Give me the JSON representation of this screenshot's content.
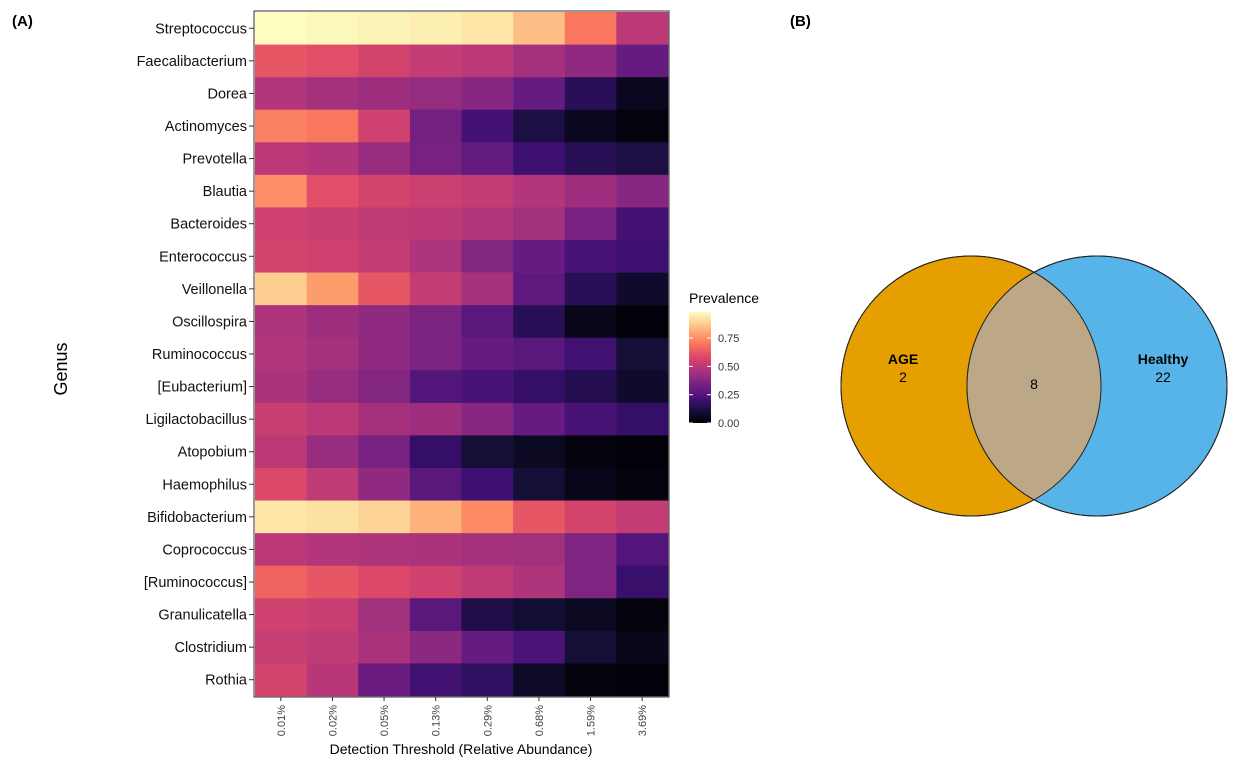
{
  "panel_a_label": "(A)",
  "panel_b_label": "(B)",
  "chart_data": [
    {
      "type": "heatmap",
      "title": "",
      "xlabel": "Detection Threshold (Relative Abundance)",
      "ylabel": "Genus",
      "x_categories": [
        "0.01%",
        "0.02%",
        "0.05%",
        "0.13%",
        "0.29%",
        "0.68%",
        "1.59%",
        "3.69%"
      ],
      "y_categories": [
        "Streptococcus",
        "Faecalibacterium",
        "Dorea",
        "Actinomyces",
        "Prevotella",
        "Blautia",
        "Bacteroides",
        "Enterococcus",
        "Veillonella",
        "Oscillospira",
        "Ruminococcus",
        "[Eubacterium]",
        "Ligilactobacillus",
        "Atopobium",
        "Haemophilus",
        "Bifidobacterium",
        "Coprococcus",
        "[Ruminococcus]",
        "Granulicatella",
        "Clostridium",
        "Rothia"
      ],
      "values": [
        [
          0.98,
          0.97,
          0.96,
          0.95,
          0.93,
          0.85,
          0.7,
          0.5
        ],
        [
          0.62,
          0.6,
          0.56,
          0.52,
          0.5,
          0.45,
          0.4,
          0.3
        ],
        [
          0.48,
          0.45,
          0.43,
          0.41,
          0.38,
          0.3,
          0.15,
          0.05
        ],
        [
          0.72,
          0.7,
          0.55,
          0.33,
          0.22,
          0.12,
          0.05,
          0.02
        ],
        [
          0.5,
          0.48,
          0.42,
          0.34,
          0.29,
          0.2,
          0.15,
          0.12
        ],
        [
          0.75,
          0.6,
          0.56,
          0.54,
          0.52,
          0.48,
          0.43,
          0.38
        ],
        [
          0.55,
          0.53,
          0.51,
          0.5,
          0.48,
          0.44,
          0.34,
          0.22
        ],
        [
          0.56,
          0.55,
          0.52,
          0.47,
          0.37,
          0.3,
          0.23,
          0.2
        ],
        [
          0.88,
          0.78,
          0.62,
          0.52,
          0.45,
          0.28,
          0.15,
          0.08
        ],
        [
          0.47,
          0.43,
          0.4,
          0.35,
          0.27,
          0.15,
          0.04,
          0.01
        ],
        [
          0.48,
          0.45,
          0.4,
          0.35,
          0.3,
          0.27,
          0.21,
          0.1
        ],
        [
          0.46,
          0.42,
          0.37,
          0.25,
          0.23,
          0.18,
          0.14,
          0.08
        ],
        [
          0.53,
          0.5,
          0.45,
          0.43,
          0.38,
          0.3,
          0.23,
          0.18
        ],
        [
          0.5,
          0.42,
          0.34,
          0.18,
          0.1,
          0.06,
          0.02,
          0.01
        ],
        [
          0.58,
          0.51,
          0.4,
          0.27,
          0.2,
          0.1,
          0.04,
          0.02
        ],
        [
          0.93,
          0.92,
          0.89,
          0.82,
          0.74,
          0.62,
          0.56,
          0.52
        ],
        [
          0.5,
          0.48,
          0.47,
          0.46,
          0.45,
          0.44,
          0.36,
          0.25
        ],
        [
          0.65,
          0.62,
          0.58,
          0.55,
          0.51,
          0.47,
          0.36,
          0.19
        ],
        [
          0.55,
          0.53,
          0.44,
          0.27,
          0.13,
          0.09,
          0.06,
          0.02
        ],
        [
          0.53,
          0.51,
          0.46,
          0.39,
          0.3,
          0.24,
          0.1,
          0.04
        ],
        [
          0.56,
          0.49,
          0.31,
          0.21,
          0.17,
          0.07,
          0.02,
          0.01
        ]
      ],
      "colorscale": "magma",
      "legend": {
        "title": "Prevalence",
        "ticks": [
          "0.00",
          "0.25",
          "0.50",
          "0.75"
        ],
        "tick_values": [
          0.0,
          0.25,
          0.5,
          0.75
        ],
        "range": [
          0,
          0.98
        ],
        "placement": "right"
      }
    }
  ],
  "venn": {
    "sets": [
      {
        "name": "AGE",
        "only_count": "2",
        "color": "#E69F00"
      },
      {
        "name": "Healthy",
        "only_count": "22",
        "color": "#56B4E9"
      }
    ],
    "intersection_count": "8",
    "intersection_color": "#BCA887"
  }
}
